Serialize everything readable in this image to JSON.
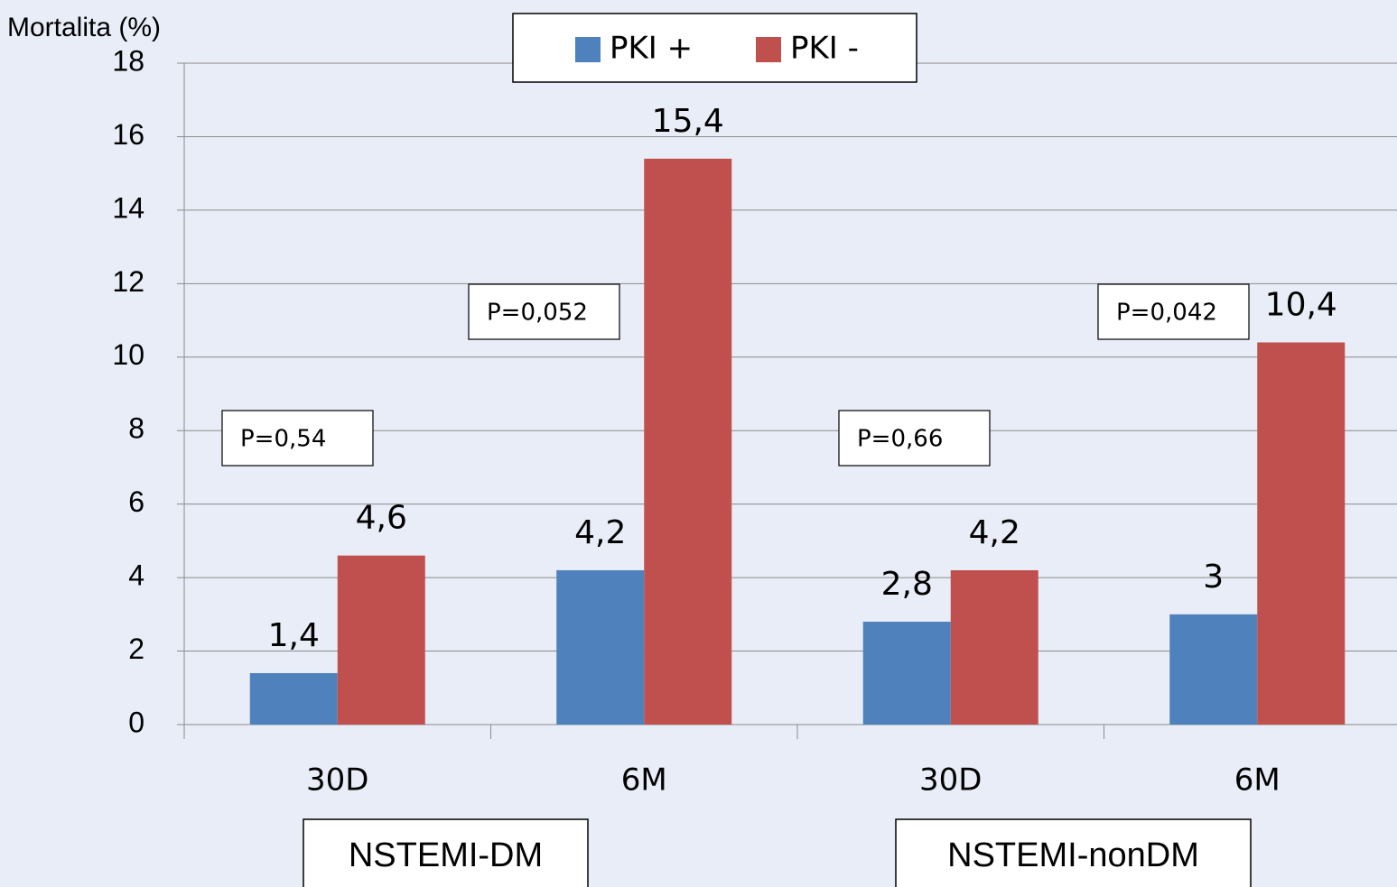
{
  "chart_data": {
    "type": "bar",
    "y_label": "Mortalita (%)",
    "categories": [
      "30D",
      "6M",
      "30D",
      "6M"
    ],
    "series": [
      {
        "name": "PKI +",
        "color": "#4f81bd",
        "values": [
          1.4,
          4.2,
          2.8,
          3
        ],
        "value_labels": [
          "1,4",
          "4,2",
          "2,8",
          "3"
        ]
      },
      {
        "name": "PKI -",
        "color": "#c0504d",
        "values": [
          4.6,
          15.4,
          4.2,
          10.4
        ],
        "value_labels": [
          "4,6",
          "15,4",
          "4,2",
          "10,4"
        ]
      }
    ],
    "ylim": [
      0,
      18
    ],
    "yticks": [
      0,
      2,
      4,
      6,
      8,
      10,
      12,
      14,
      16,
      18
    ],
    "grid": true,
    "legend": "top",
    "groups": [
      "NSTEMI-DM",
      "NSTEMI-nonDM"
    ],
    "annotations": [
      "P=0,54",
      "P=0,052",
      "P=0,66",
      "P=0,042"
    ]
  }
}
